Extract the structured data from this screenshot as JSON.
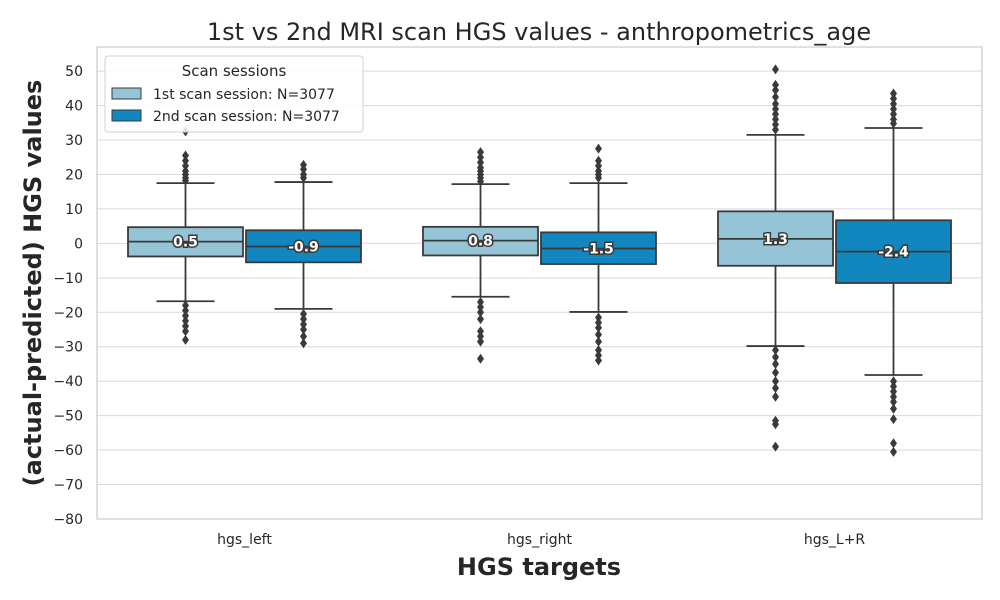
{
  "chart_data": {
    "type": "box",
    "title": "1st vs 2nd MRI scan HGS values - anthropometrics_age",
    "xlabel": "HGS targets",
    "ylabel": "(actual-predicted) HGS values",
    "ylim": [
      -80,
      57
    ],
    "yticks": [
      50,
      40,
      30,
      20,
      10,
      0,
      -10,
      -20,
      -30,
      -40,
      -50,
      -60,
      -70,
      -80
    ],
    "grid": true,
    "legend": {
      "title": "Scan sessions",
      "placement": "top-left",
      "entries": [
        "1st scan session: N=3077",
        "2nd scan session: N=3077"
      ]
    },
    "categories": [
      "hgs_left",
      "hgs_right",
      "hgs_L+R"
    ],
    "series": [
      {
        "color": "#95c4d6",
        "boxes": [
          {
            "category": "hgs_left",
            "q1": -3.8,
            "median": 0.5,
            "q3": 4.7,
            "whisker_low": -16.8,
            "whisker_high": 17.5,
            "label": "0.5",
            "outliers": [
              32.5,
              25.5,
              24,
              22.5,
              21,
              20,
              19,
              18.2,
              -18,
              -19.5,
              -21,
              -22.5,
              -24,
              -25.5,
              -28
            ]
          },
          {
            "category": "hgs_right",
            "q1": -3.5,
            "median": 0.8,
            "q3": 4.8,
            "whisker_low": -15.5,
            "whisker_high": 17.2,
            "label": "0.8",
            "outliers": [
              26.5,
              25,
              23.5,
              22,
              21,
              20,
              19,
              18,
              -17,
              -18.5,
              -20,
              -22,
              -25.5,
              -27,
              -28.5,
              -33.5
            ]
          },
          {
            "category": "hgs_L+R",
            "q1": -6.5,
            "median": 1.3,
            "q3": 9.3,
            "whisker_low": -29.8,
            "whisker_high": 31.5,
            "label": "1.3",
            "outliers": [
              50.5,
              46,
              44.5,
              42.5,
              40.5,
              39,
              37.5,
              36,
              34.5,
              33,
              -31,
              -33,
              -35,
              -37.5,
              -40,
              -42,
              -44.5,
              -51.5,
              -52.5,
              -59
            ]
          }
        ]
      },
      {
        "color": "#1287bf",
        "boxes": [
          {
            "category": "hgs_left",
            "q1": -5.5,
            "median": -0.9,
            "q3": 3.8,
            "whisker_low": -19.0,
            "whisker_high": 17.8,
            "label": "-0.9",
            "outliers": [
              22.8,
              21.5,
              20,
              19,
              -20.5,
              -22,
              -23.5,
              -25,
              -27,
              -29
            ]
          },
          {
            "category": "hgs_right",
            "q1": -6.0,
            "median": -1.5,
            "q3": 3.2,
            "whisker_low": -19.9,
            "whisker_high": 17.5,
            "label": "-1.5",
            "outliers": [
              27.5,
              24,
              22.5,
              21,
              20,
              19,
              -21.5,
              -23,
              -24.5,
              -26.5,
              -28.5,
              -31,
              -32.5,
              -34
            ]
          },
          {
            "category": "hgs_L+R",
            "q1": -11.5,
            "median": -2.4,
            "q3": 6.7,
            "whisker_low": -38.2,
            "whisker_high": 33.5,
            "label": "-2.4",
            "outliers": [
              43.5,
              42,
              40.5,
              39,
              37.5,
              36,
              34.8,
              -40,
              -41.5,
              -43,
              -44.5,
              -46,
              -48,
              -51,
              -58,
              -60.5
            ]
          }
        ]
      }
    ]
  }
}
